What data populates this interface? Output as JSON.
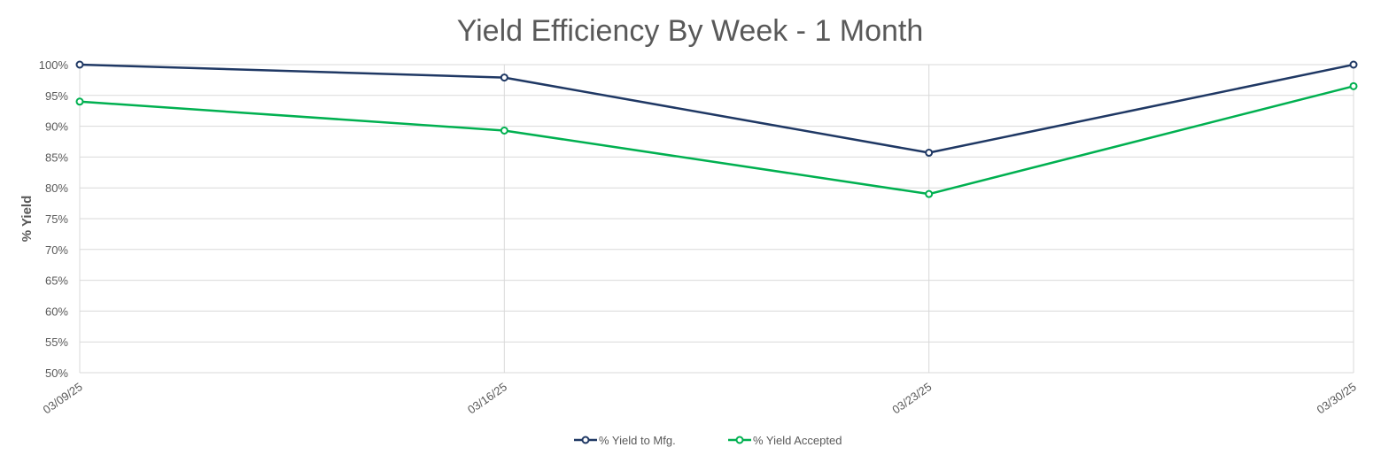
{
  "chart_data": {
    "type": "line",
    "title": "Yield Efficiency By Week - 1 Month",
    "xlabel": "",
    "ylabel": "% Yield",
    "categories": [
      "03/09/25",
      "03/16/25",
      "03/23/25",
      "03/30/25"
    ],
    "ylim": [
      50,
      100
    ],
    "yticks": [
      "50%",
      "55%",
      "60%",
      "65%",
      "70%",
      "75%",
      "80%",
      "85%",
      "90%",
      "95%",
      "100%"
    ],
    "grid": true,
    "legend_position": "bottom",
    "series": [
      {
        "name": "% Yield to Mfg.",
        "color": "#1f3864",
        "values": [
          100,
          97.9,
          85.7,
          100
        ]
      },
      {
        "name": "% Yield Accepted",
        "color": "#00b050",
        "values": [
          94.0,
          89.3,
          79.0,
          96.5
        ]
      }
    ]
  }
}
